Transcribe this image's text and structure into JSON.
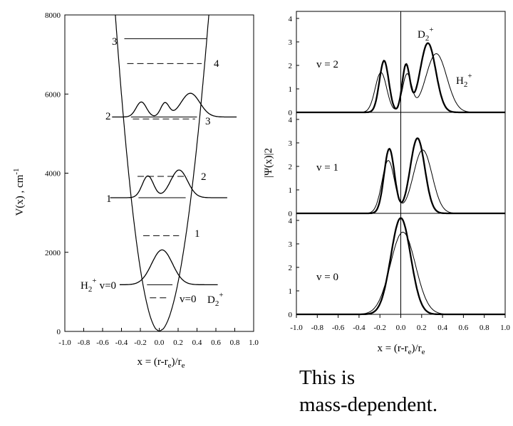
{
  "caption": {
    "line1": "This is",
    "line2": "mass-dependent."
  },
  "chart_data": [
    {
      "type": "line",
      "id": "potential",
      "xlabel": "x = (r-r",
      "xlabel_sub": "e",
      "xlabel_end": ")/r",
      "xlabel_sub2": "e",
      "ylabel": "V(x) , cm",
      "ylabel_sup": "-1",
      "xlim": [
        -1.0,
        1.0
      ],
      "ylim": [
        0,
        8000
      ],
      "xticks": [
        "-1.0",
        "-0.8",
        "-0.6",
        "-0.4",
        "-0.2",
        "0.0",
        "0.2",
        "0.4",
        "0.6",
        "0.8",
        "1.0"
      ],
      "yticks": [
        "0",
        "2000",
        "4000",
        "6000",
        "8000"
      ],
      "potential_curve": {
        "left": [
          [
            -0.47,
            8000
          ],
          [
            -0.4,
            6750
          ],
          [
            -0.3,
            5000
          ],
          [
            -0.2,
            3200
          ],
          [
            -0.12,
            1900
          ],
          [
            -0.06,
            900
          ],
          [
            0.0,
            0
          ],
          [
            0.07,
            700
          ],
          [
            0.15,
            1700
          ],
          [
            0.25,
            3100
          ],
          [
            0.35,
            4600
          ],
          [
            0.45,
            6300
          ],
          [
            0.53,
            8000
          ]
        ]
      },
      "levels_H2": [
        {
          "v": "v=0",
          "energy": 1180,
          "x_range": [
            -0.13,
            0.14
          ]
        },
        {
          "v": "1",
          "energy": 3380,
          "x_range": [
            -0.22,
            0.28
          ]
        },
        {
          "v": "2",
          "energy": 5420,
          "x_range": [
            -0.3,
            0.4
          ]
        },
        {
          "v": "3",
          "energy": 7400,
          "x_range": [
            -0.37,
            0.5
          ]
        }
      ],
      "levels_D2": [
        {
          "v": "v=0",
          "energy": 850,
          "x_range": [
            -0.1,
            0.11
          ]
        },
        {
          "v": "1",
          "energy": 2420,
          "x_range": [
            -0.17,
            0.21
          ]
        },
        {
          "v": "2",
          "energy": 3920,
          "x_range": [
            -0.23,
            0.3
          ]
        },
        {
          "v": "3",
          "energy": 5370,
          "x_range": [
            -0.28,
            0.38
          ]
        },
        {
          "v": "4",
          "energy": 6770,
          "x_range": [
            -0.34,
            0.45
          ]
        }
      ],
      "labels": {
        "h2": "H",
        "h2_sub": "2",
        "h2_sup": "+",
        "h2_v": "v=0",
        "d2": "D",
        "d2_sub": "2",
        "d2_sup": "+",
        "d2_v": "v=0",
        "h_level_1": "1",
        "h_level_2": "2",
        "h_level_3": "3",
        "d_level_1": "1",
        "d_level_2": "2",
        "d_level_3": "3",
        "d_level_4": "4"
      }
    },
    {
      "type": "line",
      "id": "wavefunctions",
      "ylabel": "|Ψ(x)|2",
      "xlabel": "x = (r-r",
      "xlabel_sub": "e",
      "xlabel_end": ")/r",
      "xlabel_sub2": "e",
      "xlim": [
        -1.0,
        1.0
      ],
      "ylim": [
        0,
        4
      ],
      "xticks": [
        "-1.0",
        "-0.8",
        "-0.6",
        "-0.4",
        "-0.2",
        "0.0",
        "0.2",
        "0.4",
        "0.6",
        "0.8",
        "1.0"
      ],
      "yticks": [
        "0",
        "1",
        "2",
        "3",
        "4"
      ],
      "panels": [
        {
          "label": "v = 2",
          "series_labels": {
            "d2": "D",
            "d2_sub": "2",
            "d2_sup": "+",
            "h2": "H",
            "h2_sub": "2",
            "h2_sup": "+"
          },
          "H2_peaks": [
            [
              -0.19,
              1.7,
              0.055
            ],
            [
              0.06,
              1.6,
              0.045
            ],
            [
              0.34,
              2.5,
              0.1
            ]
          ],
          "D2_peaks": [
            [
              -0.16,
              2.2,
              0.045
            ],
            [
              0.05,
              2.0,
              0.037
            ],
            [
              0.26,
              2.95,
              0.075
            ]
          ]
        },
        {
          "label": "v = 1",
          "H2_peaks": [
            [
              -0.12,
              2.25,
              0.06
            ],
            [
              0.21,
              2.7,
              0.09
            ]
          ],
          "D2_peaks": [
            [
              -0.11,
              2.75,
              0.05
            ],
            [
              0.16,
              3.2,
              0.07
            ]
          ]
        },
        {
          "label": "v = 0",
          "H2_peaks": [
            [
              0.02,
              3.5,
              0.12
            ]
          ],
          "D2_peaks": [
            [
              0.0,
              4.1,
              0.095
            ]
          ]
        }
      ]
    }
  ]
}
